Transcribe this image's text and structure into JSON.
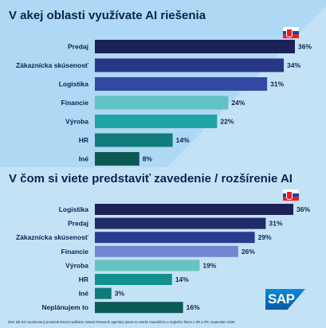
{
  "chart_data": [
    {
      "type": "bar",
      "title": "V akej oblasti využívate AI riešenia",
      "categories": [
        "Predaj",
        "Zákaznícka skúsenosť",
        "Logistika",
        "Financie",
        "Výroba",
        "HR",
        "Iné"
      ],
      "values": [
        36,
        34,
        31,
        24,
        22,
        14,
        8
      ],
      "value_labels": [
        "36%",
        "34%",
        "31%",
        "24%",
        "22%",
        "14%",
        "8%"
      ],
      "colors": [
        "#1c2157",
        "#283785",
        "#3249a3",
        "#62c1c3",
        "#1fa4a5",
        "#0f7c7b",
        "#0d5853"
      ],
      "xlim": [
        0,
        36
      ]
    },
    {
      "type": "bar",
      "title": "V čom si viete predstaviť zavedenie / rozšírenie AI",
      "categories": [
        "Logistika",
        "Predaj",
        "Zákaznícka skúsenosť",
        "Financie",
        "Výroba",
        "HR",
        "Iné",
        "Neplánujem to"
      ],
      "values": [
        36,
        31,
        29,
        26,
        19,
        14,
        3,
        16
      ],
      "value_labels": [
        "36%",
        "31%",
        "29%",
        "26%",
        "19%",
        "14%",
        "3%",
        "16%"
      ],
      "colors": [
        "#1c2157",
        "#222b6a",
        "#2a3a8e",
        "#7186cf",
        "#66c3c4",
        "#12908e",
        "#0f7c7b",
        "#0c5a55"
      ],
      "xlim": [
        0,
        36
      ]
    }
  ],
  "footer": {
    "logo_text": "SAP",
    "note": "Zber dát bol zrealizovaný prostredníctvom aplikácie Instant Research agentúry Ipsos na vzorke manažérov a majiteľov firiem v SR a ČR, september 2025"
  }
}
